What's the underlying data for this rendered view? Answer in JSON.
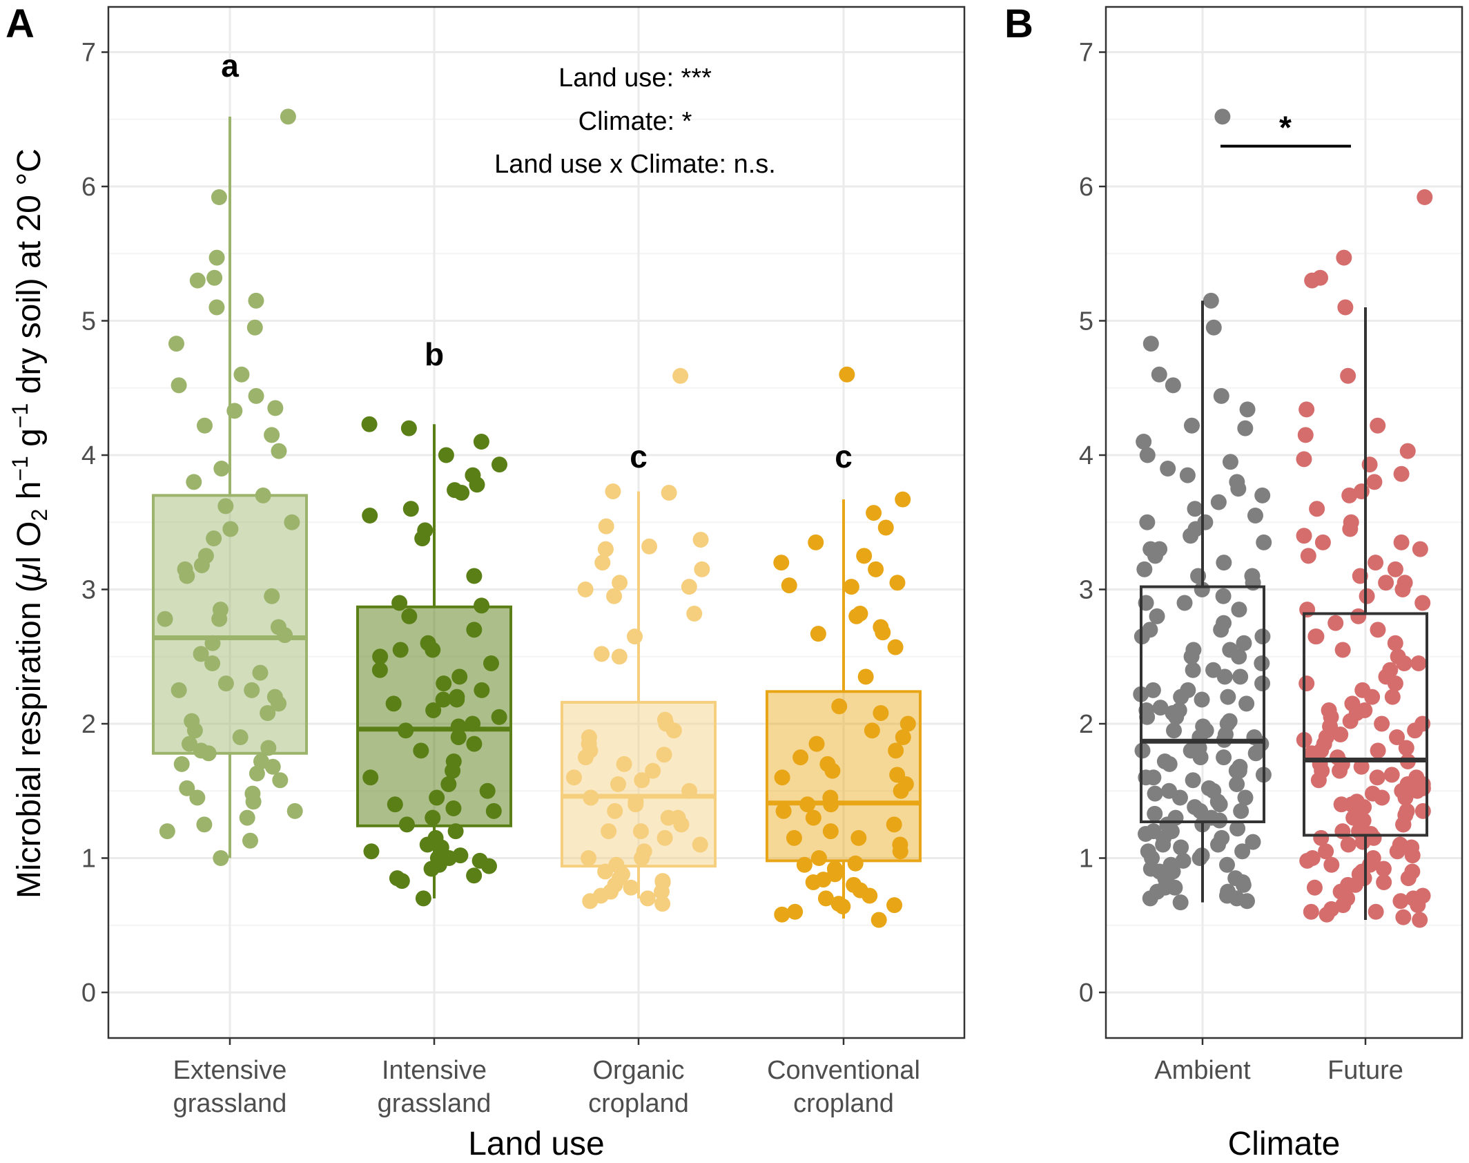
{
  "chart_data": [
    {
      "panel_tag": "A",
      "type": "box",
      "xlabel": "Land use",
      "ylabel": "Microbial respiration (µl O₂ h⁻¹ g⁻¹ dry soil) at 20 °C",
      "ylabel_parts": {
        "prefix": "Microbial respiration (",
        "mu": "μ",
        "l_o": "l O",
        "sub2": "2",
        "h": " h",
        "sup_h": "−1",
        "g": " g",
        "sup_g": "−1",
        "suffix": " dry soil) at 20 °C"
      },
      "ylim": [
        0,
        7
      ],
      "y_ticks": [
        "0",
        "1",
        "2",
        "3",
        "4",
        "5",
        "6",
        "7"
      ],
      "grid": true,
      "annotations": [
        "Land use: ***",
        "Climate: *",
        "Land use x Climate: n.s."
      ],
      "categories": [
        {
          "line1": "Extensive",
          "line2": "grassland",
          "letter": "a",
          "letter_y": 6.9,
          "color": "#9BB36A",
          "box_alpha": 0.45,
          "whisker_low": 1.0,
          "q1": 1.78,
          "median": 2.64,
          "q3": 3.7,
          "whisker_high": 6.52,
          "points": [
            1.13,
            1.25,
            1.3,
            1.35,
            1.42,
            1.48,
            1.52,
            1.58,
            1.63,
            1.68,
            1.72,
            1.78,
            1.82,
            1.85,
            1.9,
            1.95,
            2.02,
            2.08,
            2.15,
            2.2,
            2.25,
            2.3,
            2.38,
            2.45,
            2.52,
            2.6,
            2.66,
            2.72,
            2.78,
            2.85,
            2.95,
            3.1,
            3.15,
            3.25,
            3.38,
            3.45,
            3.5,
            3.62,
            3.7,
            3.8,
            3.9,
            4.03,
            4.15,
            4.22,
            4.33,
            4.35,
            4.44,
            4.52,
            4.6,
            4.83,
            4.95,
            5.1,
            5.15,
            5.3,
            5.32,
            5.47,
            5.92,
            6.52,
            1.0,
            1.2,
            1.45,
            1.7,
            2.25,
            2.78,
            3.18,
            1.8
          ]
        },
        {
          "line1": "Intensive",
          "line2": "grassland",
          "letter": "b",
          "letter_y": 4.75,
          "color": "#5A7F16",
          "box_alpha": 0.5,
          "whisker_low": 0.7,
          "q1": 1.24,
          "median": 1.96,
          "q3": 2.87,
          "whisker_high": 4.23,
          "points": [
            0.7,
            0.85,
            0.87,
            0.92,
            0.95,
            0.98,
            1.0,
            1.02,
            1.05,
            1.08,
            1.1,
            1.15,
            1.2,
            1.25,
            1.3,
            1.35,
            1.4,
            1.45,
            1.5,
            1.55,
            1.6,
            1.65,
            1.72,
            1.8,
            1.85,
            1.9,
            1.95,
            2.0,
            2.05,
            2.1,
            2.15,
            2.18,
            2.2,
            2.25,
            2.3,
            2.35,
            2.4,
            2.45,
            2.5,
            2.55,
            2.6,
            2.7,
            2.8,
            2.88,
            2.9,
            3.1,
            3.38,
            3.44,
            3.55,
            3.6,
            3.72,
            3.78,
            3.85,
            3.93,
            4.0,
            4.1,
            4.2,
            4.23,
            0.83,
            1.0,
            1.37,
            1.98,
            2.18,
            2.55,
            3.74,
            0.94
          ]
        },
        {
          "line1": "Organic",
          "line2": "cropland",
          "letter": "c",
          "letter_y": 3.99,
          "color": "#F5CF7E",
          "box_alpha": 0.45,
          "whisker_low": 0.7,
          "q1": 0.94,
          "median": 1.46,
          "q3": 2.16,
          "whisker_high": 3.73,
          "points": [
            0.66,
            0.68,
            0.7,
            0.72,
            0.75,
            0.78,
            0.8,
            0.82,
            0.85,
            0.88,
            0.9,
            0.95,
            1.0,
            1.05,
            1.1,
            1.15,
            1.2,
            1.25,
            1.3,
            1.35,
            1.4,
            1.42,
            1.45,
            1.5,
            1.55,
            1.6,
            1.65,
            1.7,
            1.75,
            1.8,
            1.85,
            1.9,
            1.95,
            2.0,
            2.03,
            2.5,
            2.52,
            2.65,
            2.82,
            2.95,
            3.0,
            3.02,
            3.05,
            3.15,
            3.2,
            3.3,
            3.32,
            3.37,
            3.47,
            3.72,
            3.73,
            4.59,
            0.75,
            1.0,
            1.3,
            1.58,
            1.77,
            0.83,
            1.2,
            1.45
          ]
        },
        {
          "line1": "Conventional",
          "line2": "cropland",
          "letter": "c",
          "letter_y": 3.99,
          "color": "#E8A617",
          "box_alpha": 0.45,
          "whisker_low": 0.55,
          "q1": 0.98,
          "median": 1.41,
          "q3": 2.24,
          "whisker_high": 3.67,
          "points": [
            0.54,
            0.58,
            0.6,
            0.64,
            0.66,
            0.7,
            0.72,
            0.76,
            0.8,
            0.84,
            0.88,
            0.92,
            0.96,
            1.0,
            1.05,
            1.1,
            1.15,
            1.2,
            1.25,
            1.3,
            1.35,
            1.4,
            1.45,
            1.5,
            1.55,
            1.6,
            1.65,
            1.7,
            1.75,
            1.8,
            1.85,
            1.9,
            1.95,
            2.0,
            2.08,
            2.13,
            2.35,
            2.57,
            2.67,
            2.72,
            2.8,
            2.82,
            3.02,
            3.03,
            3.05,
            3.15,
            3.2,
            3.25,
            3.35,
            3.46,
            3.57,
            3.67,
            4.6,
            0.65,
            0.95,
            1.15,
            1.4,
            1.62,
            2.68,
            0.82
          ]
        }
      ]
    },
    {
      "panel_tag": "B",
      "type": "box",
      "xlabel": "Climate",
      "ylim": [
        0,
        7
      ],
      "y_ticks": [
        "0",
        "1",
        "2",
        "3",
        "4",
        "5",
        "6",
        "7"
      ],
      "grid": true,
      "significance": {
        "label": "*",
        "y": 6.3,
        "label_y": 6.47
      },
      "categories": [
        {
          "label": "Ambient",
          "box_color": "#333333",
          "point_color": "#7F7F7F",
          "whisker_low": 0.67,
          "q1": 1.27,
          "median": 1.87,
          "q3": 3.02,
          "whisker_high": 5.15,
          "points": [
            0.67,
            0.68,
            0.7,
            0.72,
            0.75,
            0.78,
            0.8,
            0.82,
            0.85,
            0.88,
            0.9,
            0.92,
            0.95,
            0.98,
            1.0,
            1.02,
            1.05,
            1.08,
            1.1,
            1.12,
            1.15,
            1.18,
            1.2,
            1.22,
            1.25,
            1.28,
            1.3,
            1.33,
            1.35,
            1.38,
            1.4,
            1.42,
            1.45,
            1.48,
            1.5,
            1.52,
            1.55,
            1.58,
            1.6,
            1.62,
            1.65,
            1.68,
            1.7,
            1.72,
            1.75,
            1.78,
            1.8,
            1.82,
            1.85,
            1.88,
            1.9,
            1.92,
            1.95,
            1.98,
            2.0,
            2.02,
            2.05,
            2.08,
            2.1,
            2.12,
            2.15,
            2.18,
            2.2,
            2.22,
            2.25,
            2.3,
            2.35,
            2.4,
            2.45,
            2.5,
            2.55,
            2.6,
            2.65,
            2.7,
            2.75,
            2.8,
            2.85,
            2.9,
            2.95,
            3.0,
            3.05,
            3.1,
            3.15,
            3.2,
            3.25,
            3.3,
            3.35,
            3.4,
            3.45,
            3.5,
            3.55,
            3.6,
            3.65,
            3.7,
            3.75,
            3.8,
            3.85,
            3.9,
            3.95,
            4.0,
            4.1,
            4.2,
            4.22,
            4.34,
            4.44,
            4.52,
            4.6,
            4.83,
            4.95,
            5.15,
            6.52,
            0.7,
            0.78,
            0.9,
            1.0,
            1.1,
            1.2,
            1.3,
            1.45,
            1.6,
            1.75,
            1.9,
            2.05,
            2.2,
            2.35,
            2.5,
            2.65,
            0.75,
            0.85,
            0.95,
            1.05,
            1.15,
            1.25,
            1.35,
            1.5,
            1.65,
            1.8,
            1.95,
            2.1,
            2.25,
            2.4,
            2.55,
            2.7,
            2.9,
            3.1,
            3.3,
            3.5
          ]
        },
        {
          "label": "Future",
          "box_color": "#333333",
          "point_color": "#D66D6D",
          "whisker_low": 0.54,
          "q1": 1.17,
          "median": 1.73,
          "q3": 2.82,
          "whisker_high": 5.1,
          "points": [
            0.54,
            0.56,
            0.58,
            0.6,
            0.62,
            0.65,
            0.68,
            0.7,
            0.72,
            0.75,
            0.78,
            0.8,
            0.82,
            0.85,
            0.88,
            0.9,
            0.92,
            0.95,
            0.98,
            1.0,
            1.02,
            1.05,
            1.08,
            1.1,
            1.12,
            1.15,
            1.18,
            1.2,
            1.22,
            1.25,
            1.28,
            1.3,
            1.32,
            1.35,
            1.38,
            1.4,
            1.42,
            1.45,
            1.48,
            1.5,
            1.52,
            1.55,
            1.58,
            1.6,
            1.62,
            1.65,
            1.68,
            1.7,
            1.72,
            1.75,
            1.78,
            1.8,
            1.82,
            1.85,
            1.88,
            1.9,
            1.92,
            1.95,
            1.98,
            2.0,
            2.02,
            2.05,
            2.08,
            2.1,
            2.15,
            2.2,
            2.25,
            2.3,
            2.35,
            2.4,
            2.45,
            2.5,
            2.55,
            2.6,
            2.65,
            2.7,
            2.75,
            2.8,
            2.85,
            2.9,
            2.95,
            3.0,
            3.05,
            3.1,
            3.15,
            3.2,
            3.25,
            3.3,
            3.35,
            3.4,
            3.45,
            3.5,
            3.6,
            3.7,
            3.73,
            3.8,
            3.86,
            3.93,
            3.97,
            4.03,
            4.15,
            4.22,
            4.34,
            4.59,
            5.1,
            5.3,
            5.32,
            5.47,
            5.92,
            0.6,
            0.7,
            0.8,
            0.9,
            1.0,
            1.1,
            1.2,
            1.3,
            1.4,
            1.5,
            1.6,
            1.7,
            1.8,
            1.9,
            2.0,
            2.1,
            2.2,
            2.3,
            0.65,
            0.75,
            0.85,
            0.95,
            1.05,
            1.15,
            1.25,
            1.35,
            1.45,
            1.55,
            1.65,
            2.45,
            2.65,
            3.05,
            3.35
          ]
        }
      ]
    }
  ]
}
